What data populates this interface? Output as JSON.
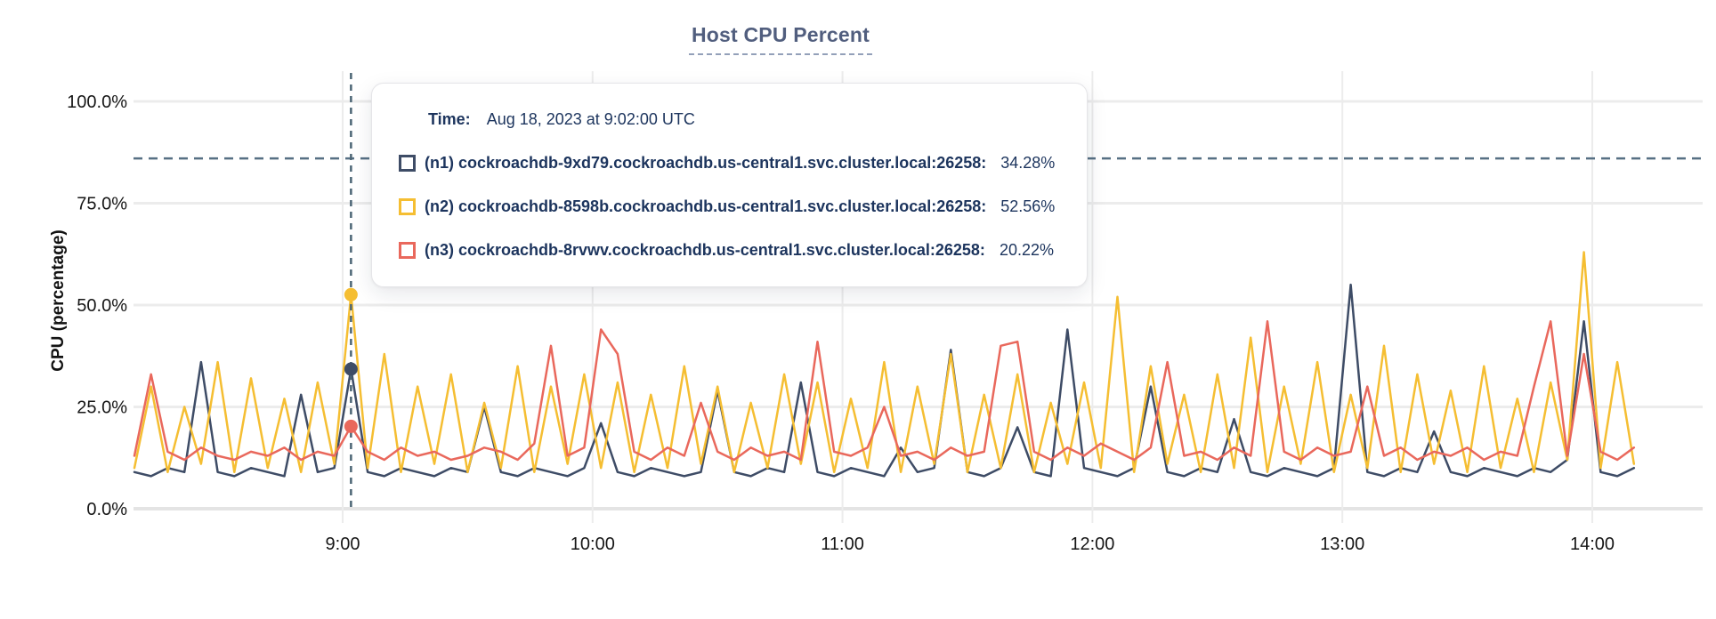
{
  "page": {
    "title_label": "Host CPU Percent"
  },
  "tooltip": {
    "time_label": "Time:",
    "time_value": "Aug 18, 2023 at 9:02:00 UTC",
    "rows": [
      {
        "label": "(n1) cockroachdb-9xd79.cockroachdb.us-central1.svc.cluster.local:26258:",
        "value": "34.28%"
      },
      {
        "label": "(n2) cockroachdb-8598b.cockroachdb.us-central1.svc.cluster.local:26258:",
        "value": "52.56%"
      },
      {
        "label": "(n3) cockroachdb-8rvwv.cockroachdb.us-central1.svc.cluster.local:26258:",
        "value": "20.22%"
      }
    ]
  },
  "colors": {
    "series_n1": "#3E4C66",
    "series_n2": "#F5BE32",
    "series_n3": "#E9685C",
    "dashed_line": "#577084",
    "gridline": "#ECECEC",
    "title_text": "#515E7E",
    "tooltip_text": "#1C345D",
    "axis_text": "#161616"
  },
  "chart_data": {
    "type": "line",
    "title": "Host CPU Percent",
    "xlabel": "",
    "ylabel": "CPU (percentage)",
    "ylim": [
      0,
      100
    ],
    "grid": true,
    "legend_position": "tooltip",
    "threshold_value": 86,
    "hover_index": 13,
    "hover_time": "9:02:00",
    "x_start_minutes": 490,
    "x_step_minutes": 4,
    "y_ticks": [
      {
        "value": 0,
        "label": "0.0%"
      },
      {
        "value": 25,
        "label": "25.0%"
      },
      {
        "value": 50,
        "label": "50.0%"
      },
      {
        "value": 75,
        "label": "75.0%"
      },
      {
        "value": 100,
        "label": "100.0%"
      }
    ],
    "x_ticks": [
      {
        "minutes": 540,
        "label": "9:00"
      },
      {
        "minutes": 600,
        "label": "10:00"
      },
      {
        "minutes": 660,
        "label": "11:00"
      },
      {
        "minutes": 720,
        "label": "12:00"
      },
      {
        "minutes": 780,
        "label": "13:00"
      },
      {
        "minutes": 840,
        "label": "14:00"
      }
    ],
    "series": [
      {
        "id": "n1",
        "name": "cockroachdb-9xd79.cockroachdb.us-central1.svc.cluster.local:26258",
        "color": "#3E4C66",
        "hover_value": 34.28,
        "values": [
          9,
          8,
          10,
          9,
          36,
          9,
          8,
          10,
          9,
          8,
          28,
          9,
          10,
          34.28,
          9,
          8,
          10,
          9,
          8,
          10,
          9,
          25,
          9,
          8,
          10,
          9,
          8,
          10,
          21,
          9,
          8,
          10,
          9,
          8,
          9,
          29,
          9,
          8,
          10,
          9,
          31,
          9,
          8,
          10,
          9,
          8,
          15,
          9,
          10,
          39,
          9,
          8,
          10,
          20,
          9,
          8,
          44,
          10,
          9,
          8,
          10,
          30,
          9,
          8,
          10,
          9,
          22,
          9,
          8,
          10,
          9,
          8,
          10,
          55,
          9,
          8,
          10,
          9,
          19,
          9,
          8,
          10,
          9,
          8,
          10,
          9,
          12,
          46,
          9,
          8,
          10
        ]
      },
      {
        "id": "n2",
        "name": "cockroachdb-8598b.cockroachdb.us-central1.svc.cluster.local:26258",
        "color": "#F5BE32",
        "hover_value": 52.56,
        "values": [
          10,
          30,
          9,
          25,
          11,
          36,
          9,
          32,
          10,
          27,
          9,
          31,
          11,
          52.56,
          10,
          38,
          9,
          30,
          11,
          33,
          9,
          26,
          10,
          35,
          9,
          30,
          11,
          33,
          10,
          31,
          9,
          28,
          10,
          35,
          11,
          30,
          9,
          26,
          10,
          33,
          11,
          31,
          9,
          27,
          10,
          36,
          9,
          30,
          11,
          38,
          9,
          28,
          10,
          33,
          9,
          26,
          11,
          31,
          10,
          52,
          9,
          35,
          11,
          28,
          9,
          33,
          10,
          42,
          9,
          30,
          11,
          36,
          9,
          28,
          10,
          40,
          9,
          33,
          11,
          29,
          9,
          35,
          10,
          27,
          9,
          31,
          12,
          63,
          10,
          36,
          11
        ]
      },
      {
        "id": "n3",
        "name": "cockroachdb-8rvwv.cockroachdb.us-central1.svc.cluster.local:26258",
        "color": "#E9685C",
        "hover_value": 20.22,
        "values": [
          13,
          33,
          14,
          12,
          15,
          13,
          12,
          14,
          13,
          15,
          12,
          14,
          13,
          20.22,
          14,
          12,
          15,
          13,
          14,
          12,
          13,
          15,
          14,
          12,
          16,
          40,
          13,
          15,
          44,
          38,
          14,
          12,
          15,
          13,
          26,
          14,
          12,
          15,
          13,
          14,
          12,
          41,
          14,
          13,
          15,
          25,
          13,
          14,
          12,
          15,
          13,
          14,
          40,
          41,
          14,
          12,
          15,
          13,
          16,
          14,
          12,
          15,
          36,
          13,
          14,
          12,
          15,
          13,
          46,
          14,
          12,
          15,
          13,
          14,
          30,
          13,
          15,
          12,
          14,
          13,
          15,
          12,
          14,
          13,
          30,
          46,
          13,
          38,
          14,
          12,
          15
        ]
      }
    ]
  }
}
